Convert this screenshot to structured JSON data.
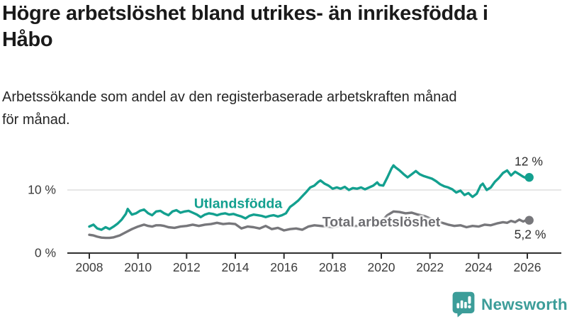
{
  "header": {
    "title": "Högre arbetslöshet bland utrikes- än inrikesfödda i\nHåbo",
    "subtitle": "Arbetssökande som andel av den registerbaserade arbetskraften månad\nför månad."
  },
  "chart_data": {
    "type": "line",
    "title": "Högre arbetslöshet bland utrikes- än inrikesfödda i Håbo",
    "subtitle": "Arbetssökande som andel av den registerbaserade arbetskraften månad för månad.",
    "y_unit": "%",
    "x_range": [
      2008,
      2026.2
    ],
    "ylim": [
      0,
      15
    ],
    "grid_values": [
      10
    ],
    "y_ticks": [
      {
        "value": 10,
        "label": "10 %"
      },
      {
        "value": 0,
        "label": "0 %"
      }
    ],
    "x_ticks": [
      2008,
      2010,
      2012,
      2014,
      2016,
      2018,
      2020,
      2022,
      2024,
      2026
    ],
    "legend_position": "inline-labels",
    "series": [
      {
        "id": "utlandsfodda",
        "label": "Utlandsfödda",
        "color": "#13A08F",
        "end_label": "12 %",
        "end_value": 12,
        "points": [
          [
            2008.0,
            4.2
          ],
          [
            2008.17,
            4.5
          ],
          [
            2008.33,
            3.9
          ],
          [
            2008.5,
            3.7
          ],
          [
            2008.67,
            4.1
          ],
          [
            2008.83,
            3.8
          ],
          [
            2009.0,
            4.2
          ],
          [
            2009.17,
            4.7
          ],
          [
            2009.33,
            5.3
          ],
          [
            2009.5,
            6.2
          ],
          [
            2009.58,
            7.0
          ],
          [
            2009.75,
            6.1
          ],
          [
            2009.92,
            6.3
          ],
          [
            2010.08,
            6.7
          ],
          [
            2010.25,
            6.9
          ],
          [
            2010.42,
            6.3
          ],
          [
            2010.58,
            6.0
          ],
          [
            2010.75,
            6.6
          ],
          [
            2010.92,
            6.7
          ],
          [
            2011.08,
            6.3
          ],
          [
            2011.25,
            6.0
          ],
          [
            2011.42,
            6.6
          ],
          [
            2011.58,
            6.8
          ],
          [
            2011.75,
            6.4
          ],
          [
            2011.92,
            6.6
          ],
          [
            2012.08,
            6.7
          ],
          [
            2012.25,
            6.4
          ],
          [
            2012.42,
            6.1
          ],
          [
            2012.58,
            5.7
          ],
          [
            2012.75,
            6.1
          ],
          [
            2012.92,
            6.3
          ],
          [
            2013.08,
            6.2
          ],
          [
            2013.25,
            6.0
          ],
          [
            2013.42,
            6.2
          ],
          [
            2013.58,
            6.3
          ],
          [
            2013.75,
            6.1
          ],
          [
            2013.92,
            6.2
          ],
          [
            2014.08,
            6.0
          ],
          [
            2014.25,
            5.8
          ],
          [
            2014.42,
            5.5
          ],
          [
            2014.58,
            5.9
          ],
          [
            2014.75,
            6.1
          ],
          [
            2014.92,
            6.0
          ],
          [
            2015.08,
            5.9
          ],
          [
            2015.25,
            5.7
          ],
          [
            2015.42,
            5.9
          ],
          [
            2015.58,
            6.0
          ],
          [
            2015.75,
            5.8
          ],
          [
            2015.92,
            6.0
          ],
          [
            2016.08,
            6.3
          ],
          [
            2016.25,
            7.3
          ],
          [
            2016.42,
            7.8
          ],
          [
            2016.58,
            8.3
          ],
          [
            2016.75,
            9.0
          ],
          [
            2016.92,
            9.7
          ],
          [
            2017.08,
            10.4
          ],
          [
            2017.25,
            10.7
          ],
          [
            2017.42,
            11.3
          ],
          [
            2017.5,
            11.5
          ],
          [
            2017.67,
            11.0
          ],
          [
            2017.83,
            10.7
          ],
          [
            2018.0,
            10.2
          ],
          [
            2018.17,
            10.4
          ],
          [
            2018.33,
            10.2
          ],
          [
            2018.5,
            10.5
          ],
          [
            2018.67,
            10.0
          ],
          [
            2018.83,
            10.3
          ],
          [
            2019.0,
            10.2
          ],
          [
            2019.17,
            10.4
          ],
          [
            2019.33,
            10.1
          ],
          [
            2019.5,
            10.4
          ],
          [
            2019.67,
            10.7
          ],
          [
            2019.83,
            11.2
          ],
          [
            2019.92,
            10.8
          ],
          [
            2020.08,
            10.7
          ],
          [
            2020.25,
            12.0
          ],
          [
            2020.42,
            13.4
          ],
          [
            2020.5,
            13.9
          ],
          [
            2020.58,
            13.6
          ],
          [
            2020.75,
            13.1
          ],
          [
            2020.92,
            12.5
          ],
          [
            2021.08,
            12.0
          ],
          [
            2021.25,
            12.5
          ],
          [
            2021.42,
            13.0
          ],
          [
            2021.58,
            12.5
          ],
          [
            2021.75,
            12.2
          ],
          [
            2021.92,
            12.0
          ],
          [
            2022.08,
            11.8
          ],
          [
            2022.25,
            11.4
          ],
          [
            2022.42,
            10.9
          ],
          [
            2022.58,
            10.6
          ],
          [
            2022.75,
            10.4
          ],
          [
            2022.92,
            10.1
          ],
          [
            2023.08,
            9.6
          ],
          [
            2023.25,
            9.9
          ],
          [
            2023.42,
            9.2
          ],
          [
            2023.58,
            9.5
          ],
          [
            2023.75,
            8.9
          ],
          [
            2023.92,
            9.4
          ],
          [
            2024.08,
            10.7
          ],
          [
            2024.17,
            11.0
          ],
          [
            2024.33,
            10.0
          ],
          [
            2024.5,
            10.4
          ],
          [
            2024.67,
            11.3
          ],
          [
            2024.83,
            11.9
          ],
          [
            2025.0,
            12.7
          ],
          [
            2025.17,
            13.1
          ],
          [
            2025.33,
            12.3
          ],
          [
            2025.5,
            12.9
          ],
          [
            2025.67,
            12.5
          ],
          [
            2025.83,
            12.1
          ],
          [
            2026.0,
            11.8
          ],
          [
            2026.08,
            12.0
          ]
        ]
      },
      {
        "id": "total",
        "label": "Total arbetslöshet",
        "color": "#77777B",
        "end_label": "5,2 %",
        "end_value": 5.2,
        "points": [
          [
            2008.0,
            2.9
          ],
          [
            2008.17,
            2.8
          ],
          [
            2008.33,
            2.6
          ],
          [
            2008.5,
            2.45
          ],
          [
            2008.67,
            2.4
          ],
          [
            2008.83,
            2.4
          ],
          [
            2009.0,
            2.5
          ],
          [
            2009.25,
            2.8
          ],
          [
            2009.5,
            3.3
          ],
          [
            2009.75,
            3.8
          ],
          [
            2010.0,
            4.2
          ],
          [
            2010.25,
            4.5
          ],
          [
            2010.42,
            4.3
          ],
          [
            2010.58,
            4.2
          ],
          [
            2010.75,
            4.4
          ],
          [
            2010.92,
            4.4
          ],
          [
            2011.08,
            4.3
          ],
          [
            2011.25,
            4.1
          ],
          [
            2011.5,
            4.0
          ],
          [
            2011.75,
            4.2
          ],
          [
            2012.0,
            4.3
          ],
          [
            2012.25,
            4.5
          ],
          [
            2012.5,
            4.3
          ],
          [
            2012.75,
            4.5
          ],
          [
            2013.0,
            4.6
          ],
          [
            2013.25,
            4.8
          ],
          [
            2013.5,
            4.6
          ],
          [
            2013.75,
            4.7
          ],
          [
            2014.0,
            4.6
          ],
          [
            2014.25,
            3.9
          ],
          [
            2014.5,
            4.2
          ],
          [
            2014.75,
            4.1
          ],
          [
            2015.0,
            3.9
          ],
          [
            2015.25,
            4.3
          ],
          [
            2015.5,
            3.8
          ],
          [
            2015.75,
            4.0
          ],
          [
            2016.0,
            3.6
          ],
          [
            2016.25,
            3.8
          ],
          [
            2016.5,
            3.9
          ],
          [
            2016.75,
            3.7
          ],
          [
            2017.0,
            4.2
          ],
          [
            2017.25,
            4.4
          ],
          [
            2017.5,
            4.3
          ],
          [
            2017.75,
            4.2
          ],
          [
            2018.0,
            4.1
          ],
          [
            2018.25,
            4.3
          ],
          [
            2018.5,
            4.2
          ],
          [
            2018.75,
            4.3
          ],
          [
            2019.0,
            4.3
          ],
          [
            2019.25,
            4.5
          ],
          [
            2019.5,
            4.6
          ],
          [
            2019.75,
            4.8
          ],
          [
            2020.0,
            5.0
          ],
          [
            2020.25,
            6.0
          ],
          [
            2020.5,
            6.6
          ],
          [
            2020.75,
            6.5
          ],
          [
            2021.0,
            6.3
          ],
          [
            2021.25,
            6.4
          ],
          [
            2021.5,
            6.1
          ],
          [
            2021.75,
            5.9
          ],
          [
            2022.0,
            5.5
          ],
          [
            2022.25,
            5.1
          ],
          [
            2022.5,
            4.8
          ],
          [
            2022.75,
            4.5
          ],
          [
            2023.0,
            4.3
          ],
          [
            2023.25,
            4.4
          ],
          [
            2023.5,
            4.1
          ],
          [
            2023.75,
            4.3
          ],
          [
            2024.0,
            4.2
          ],
          [
            2024.25,
            4.5
          ],
          [
            2024.5,
            4.4
          ],
          [
            2024.75,
            4.7
          ],
          [
            2025.0,
            4.9
          ],
          [
            2025.17,
            4.8
          ],
          [
            2025.33,
            5.1
          ],
          [
            2025.5,
            4.9
          ],
          [
            2025.67,
            5.3
          ],
          [
            2025.83,
            5.0
          ],
          [
            2026.0,
            5.3
          ],
          [
            2026.08,
            5.2
          ]
        ]
      }
    ]
  },
  "branding": {
    "logo_text": "Newsworthy",
    "logo_icon": "bar-chart-speech-bubble-icon",
    "logo_color": "#3C9D99"
  },
  "colors": {
    "accent_teal": "#13A08F",
    "series_gray": "#77777B",
    "axis": "#2F2F2F",
    "gridline": "#D8D8D8",
    "text_dark": "#1A1A1A"
  }
}
